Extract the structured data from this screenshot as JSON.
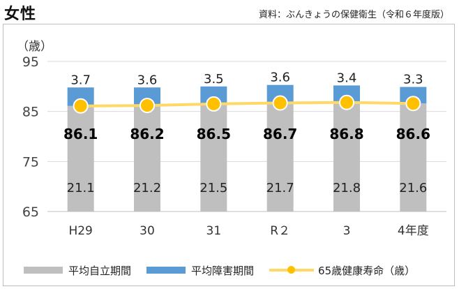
{
  "header": {
    "title": "女性",
    "source": "資料：ぶんきょうの保健衛生（令和６年度版）"
  },
  "chart_data": {
    "type": "bar",
    "unit_label": "（歳）",
    "categories": [
      "H29",
      "30",
      "31",
      "R２",
      "3",
      "4年度"
    ],
    "ylim": [
      65,
      95
    ],
    "yticks": [
      65,
      75,
      85,
      95
    ],
    "grid": true,
    "legend_position": "bottom",
    "series": [
      {
        "name": "平均自立期間",
        "values": [
          21.1,
          21.2,
          21.5,
          21.7,
          21.8,
          21.6
        ],
        "color": "#bfbfbf"
      },
      {
        "name": "平均障害期間",
        "values": [
          3.7,
          3.6,
          3.5,
          3.6,
          3.4,
          3.3
        ],
        "color": "#5b9bd5"
      },
      {
        "name": "65歳健康寿命（歳）",
        "values": [
          86.1,
          86.2,
          86.5,
          86.7,
          86.8,
          86.6
        ],
        "color": "#ffd966",
        "marker_color": "#ffc000"
      }
    ]
  }
}
